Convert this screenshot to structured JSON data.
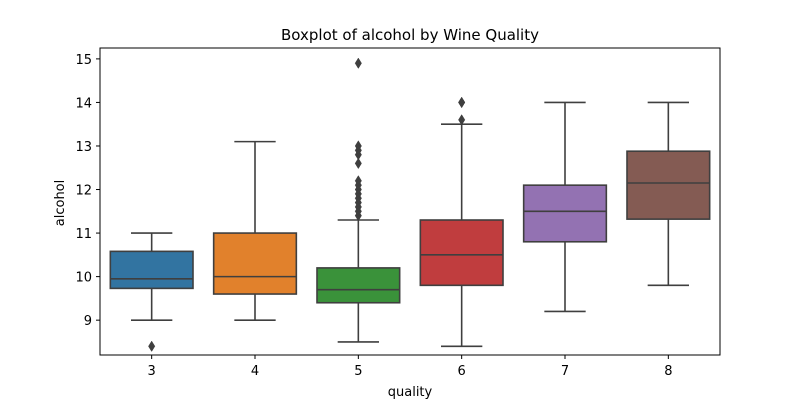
{
  "chart_data": {
    "type": "boxplot",
    "title": "Boxplot of alcohol by Wine Quality",
    "xlabel": "quality",
    "ylabel": "alcohol",
    "categories": [
      "3",
      "4",
      "5",
      "6",
      "7",
      "8"
    ],
    "ylim": [
      8.2,
      15.25
    ],
    "yticks": [
      9,
      10,
      11,
      12,
      13,
      14,
      15
    ],
    "grid": false,
    "boxes": [
      {
        "category": "3",
        "whisker_low": 9.0,
        "q1": 9.73,
        "median": 9.95,
        "q3": 10.58,
        "whisker_high": 11.0,
        "outliers": [
          8.4
        ],
        "color": "#3274a1"
      },
      {
        "category": "4",
        "whisker_low": 9.0,
        "q1": 9.6,
        "median": 10.0,
        "q3": 11.0,
        "whisker_high": 13.1,
        "outliers": [],
        "color": "#e1812c"
      },
      {
        "category": "5",
        "whisker_low": 8.5,
        "q1": 9.4,
        "median": 9.7,
        "q3": 10.2,
        "whisker_high": 11.3,
        "outliers": [
          11.4,
          11.5,
          11.6,
          11.7,
          11.8,
          11.9,
          12.0,
          12.1,
          12.2,
          12.6,
          12.8,
          12.9,
          13.0,
          14.9
        ],
        "color": "#3a923a"
      },
      {
        "category": "6",
        "whisker_low": 8.4,
        "q1": 9.8,
        "median": 10.5,
        "q3": 11.3,
        "whisker_high": 13.5,
        "outliers": [
          13.6,
          14.0,
          14.0
        ],
        "color": "#c03d3e"
      },
      {
        "category": "7",
        "whisker_low": 9.2,
        "q1": 10.8,
        "median": 11.5,
        "q3": 12.1,
        "whisker_high": 14.0,
        "outliers": [],
        "color": "#9372b2"
      },
      {
        "category": "8",
        "whisker_low": 9.8,
        "q1": 11.32,
        "median": 12.15,
        "q3": 12.88,
        "whisker_high": 14.0,
        "outliers": [],
        "color": "#845b53"
      }
    ]
  }
}
